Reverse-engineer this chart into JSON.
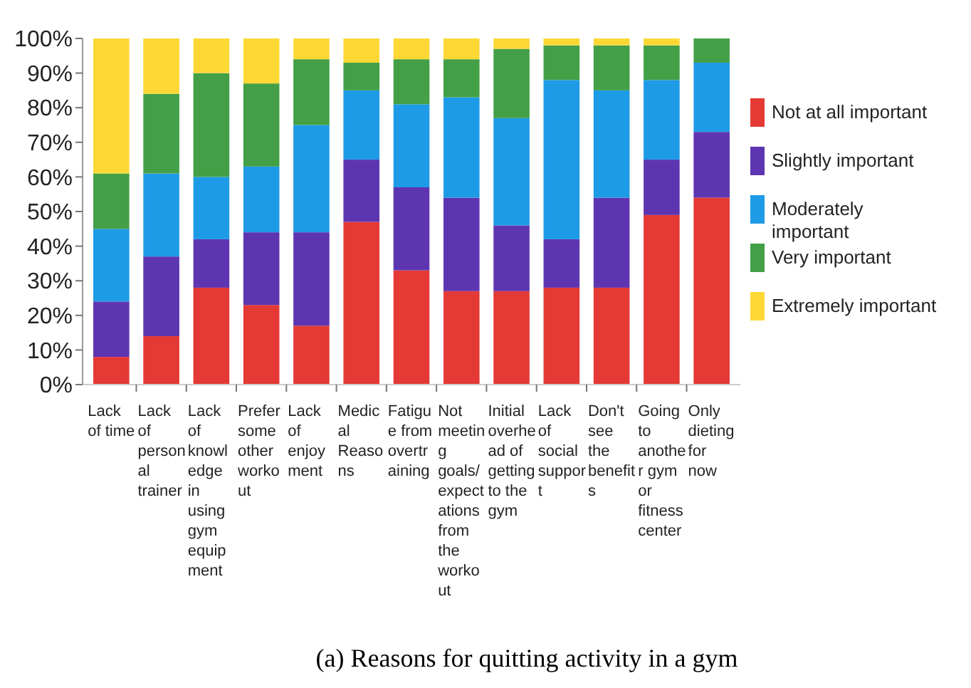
{
  "chart_data": {
    "type": "bar",
    "stacked": true,
    "title": "(a) Reasons for quitting activity in a gym",
    "categories": [
      "Lack of time",
      "Lack of personal trainer",
      "Lack of knowledge in using gym equipment",
      "Prefer some other workout",
      "Lack of enjoyment",
      "Medical Reasons",
      "Fatigue from overtraining",
      "Not meeting goals/expectations from the workout",
      "Initial overhead of getting to the gym",
      "Lack of social support",
      "Don't see the benefits",
      "Going to another gym or fitness center",
      "Only dieting for now"
    ],
    "series": [
      {
        "name": "Not at all important",
        "color": "#e53935",
        "values": [
          8,
          14,
          28,
          23,
          17,
          47,
          33,
          27,
          27,
          28,
          28,
          49,
          54
        ]
      },
      {
        "name": "Slightly important",
        "color": "#5e35b1",
        "values": [
          16,
          23,
          14,
          21,
          27,
          18,
          24,
          27,
          19,
          14,
          26,
          16,
          19
        ]
      },
      {
        "name": "Moderately important",
        "color": "#1e9be6",
        "values": [
          21,
          24,
          18,
          19,
          31,
          20,
          24,
          29,
          31,
          46,
          31,
          23,
          20
        ]
      },
      {
        "name": "Very important",
        "color": "#43a047",
        "values": [
          16,
          23,
          30,
          24,
          19,
          8,
          13,
          11,
          20,
          10,
          13,
          10,
          7
        ]
      },
      {
        "name": "Extremely important",
        "color": "#fdd835",
        "values": [
          39,
          16,
          10,
          13,
          6,
          7,
          6,
          6,
          3,
          2,
          2,
          2,
          0
        ]
      }
    ],
    "ylim": [
      0,
      100
    ],
    "yticks": [
      {
        "value": 0,
        "label": "0%"
      },
      {
        "value": 10,
        "label": "10%"
      },
      {
        "value": 20,
        "label": "20%"
      },
      {
        "value": 30,
        "label": "30%"
      },
      {
        "value": 40,
        "label": "40%"
      },
      {
        "value": 50,
        "label": "50%"
      },
      {
        "value": 60,
        "label": "60%"
      },
      {
        "value": 70,
        "label": "70%"
      },
      {
        "value": 80,
        "label": "80%"
      },
      {
        "value": 90,
        "label": "90%"
      },
      {
        "value": 100,
        "label": "100%"
      }
    ],
    "grid": false,
    "legend": "right"
  }
}
